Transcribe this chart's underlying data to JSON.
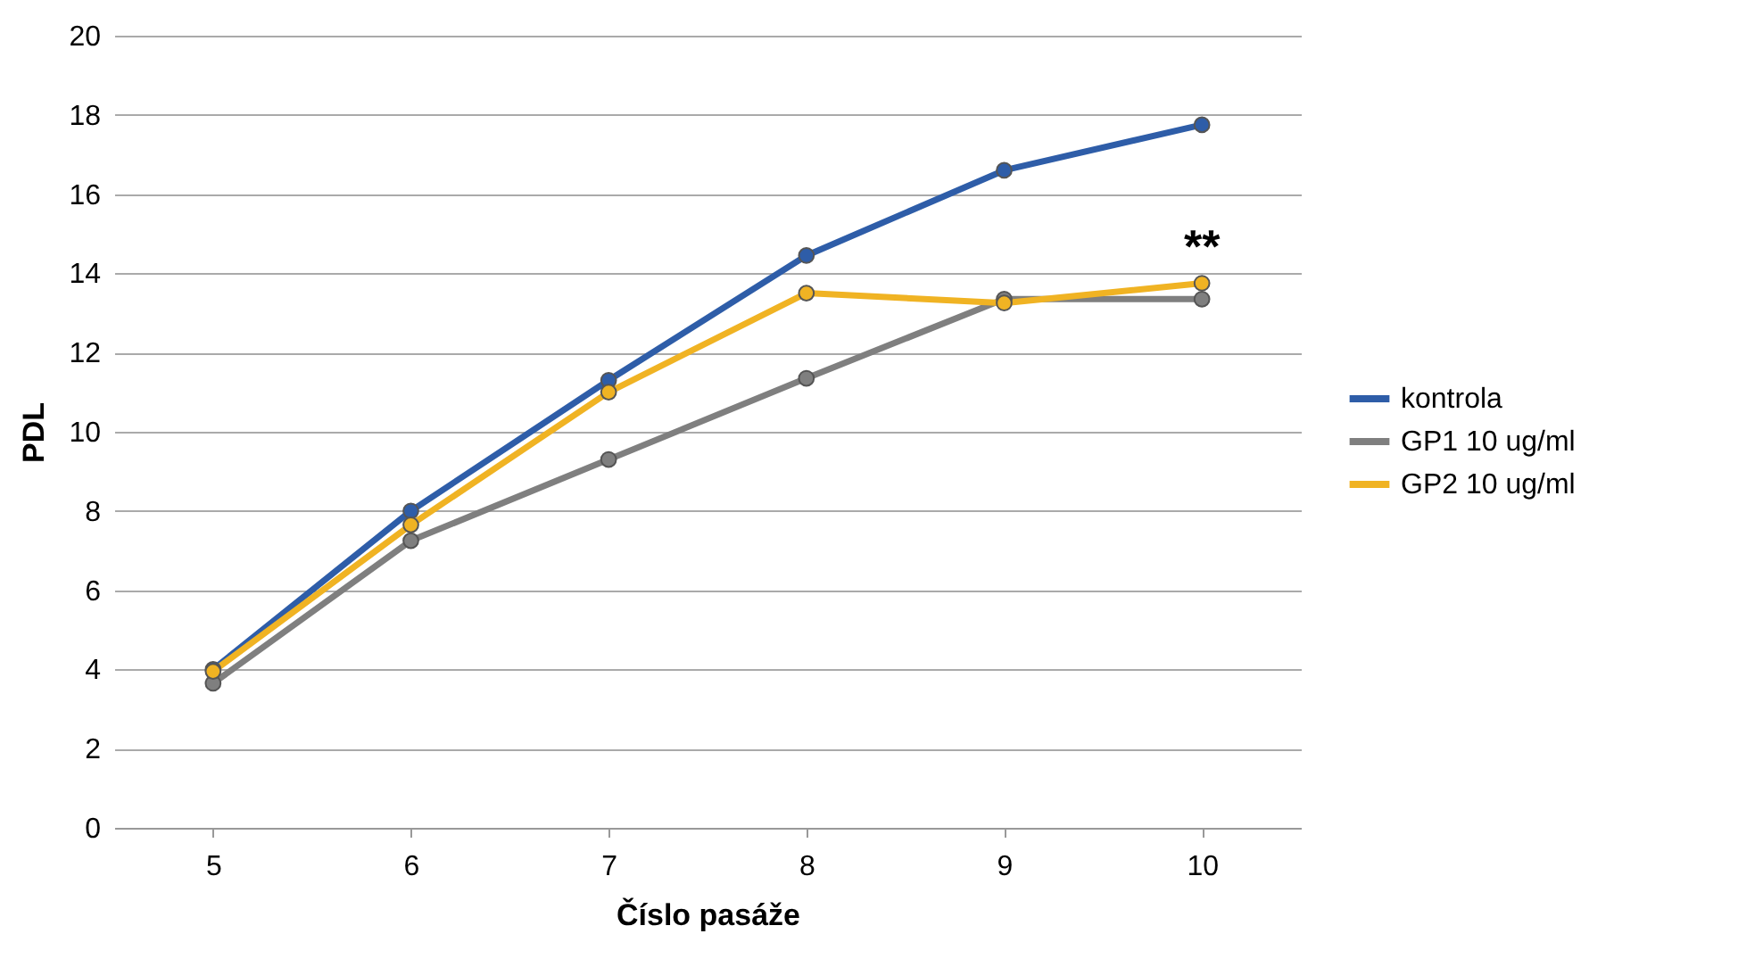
{
  "chart_data": {
    "type": "line",
    "xlabel": "Číslo pasáže",
    "ylabel": "PDL",
    "categories": [
      "5",
      "6",
      "7",
      "8",
      "9",
      "10"
    ],
    "series": [
      {
        "name": "kontrola",
        "color": "#2e5da8",
        "values": [
          4.0,
          8.0,
          11.3,
          14.45,
          16.6,
          17.75
        ]
      },
      {
        "name": "GP1 10 ug/ml",
        "color": "#7f7f7f",
        "values": [
          3.65,
          7.25,
          9.3,
          11.35,
          13.35,
          13.35
        ]
      },
      {
        "name": "GP2 10 ug/ml",
        "color": "#f0b323",
        "values": [
          3.95,
          7.65,
          11.0,
          13.5,
          13.25,
          13.75
        ]
      }
    ],
    "ylim": [
      0,
      20
    ],
    "yticks": [
      0,
      2,
      4,
      6,
      8,
      10,
      12,
      14,
      16,
      18,
      20
    ],
    "grid": "y",
    "legend": "right",
    "marker": "circle",
    "line_style": "solid",
    "annotations": [
      "**"
    ]
  }
}
